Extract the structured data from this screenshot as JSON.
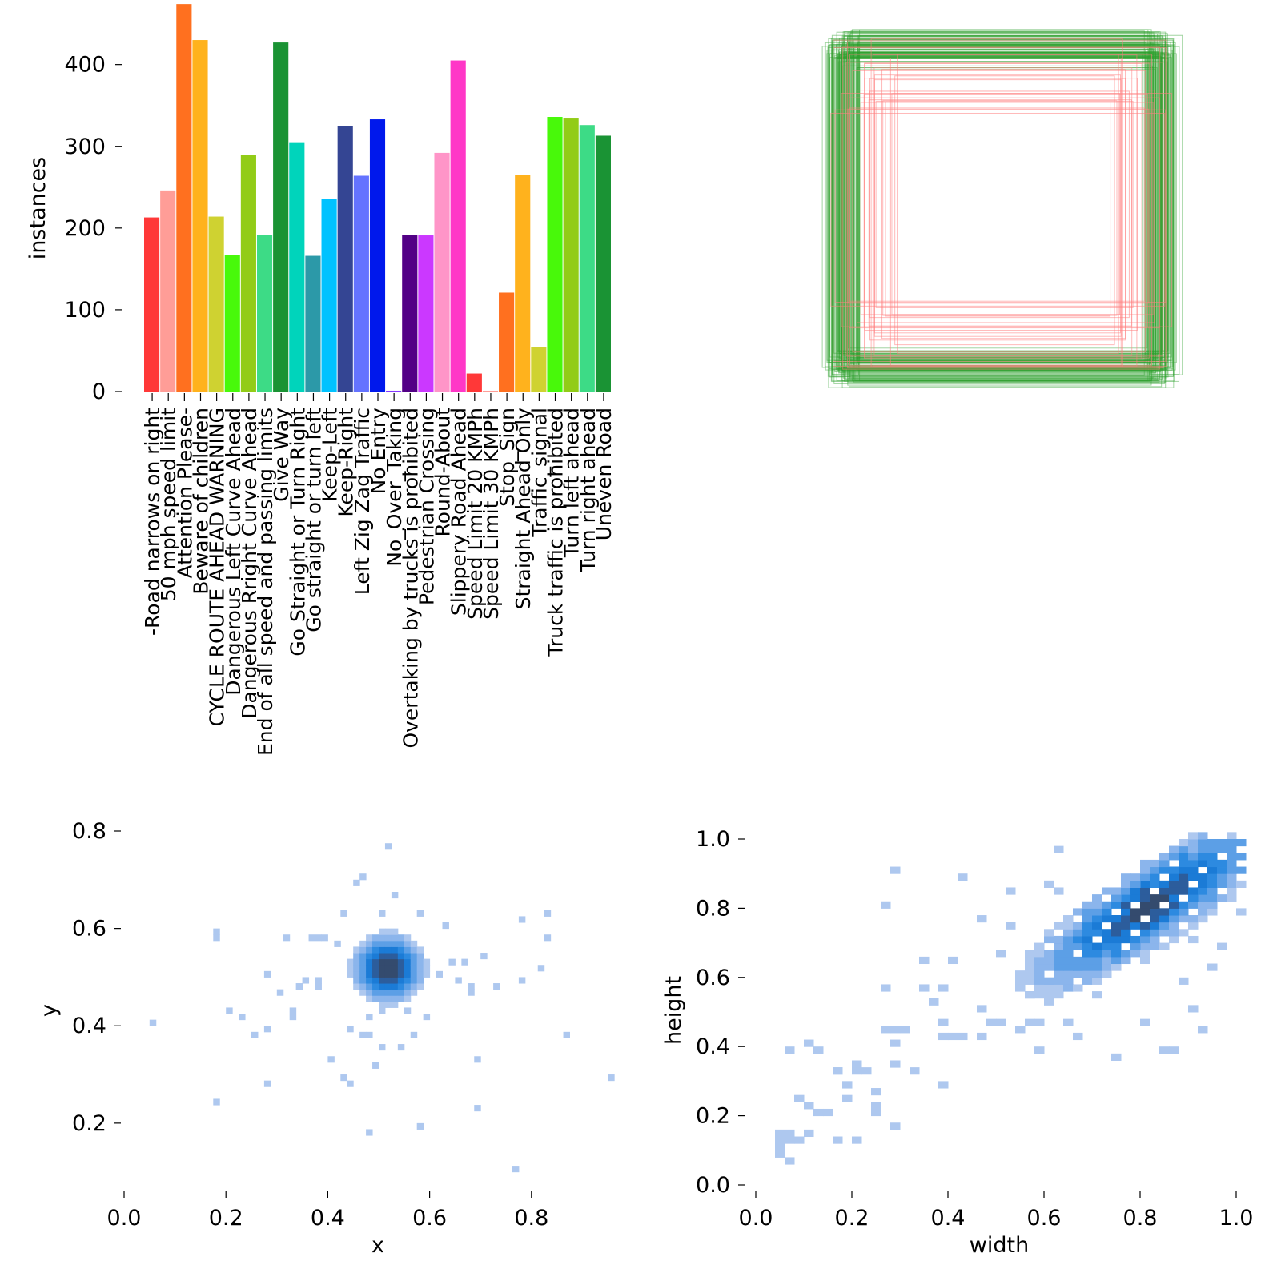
{
  "chart_data": [
    {
      "type": "bar",
      "title": "",
      "xlabel": "",
      "ylabel": "instances",
      "ylim": [
        0,
        480
      ],
      "yticks": [
        0,
        100,
        200,
        300,
        400
      ],
      "grid": false,
      "categories": [
        "-Road narrows on right",
        "50 mph speed limit",
        "Attention Please-",
        "Beware of children",
        "CYCLE ROUTE AHEAD WARNING",
        "Dangerous Left Curve Ahead",
        "Dangerous Rright Curve Ahead",
        "End of all speed and passing limits",
        "Give Way",
        "Go Straight or Turn Right",
        "Go straight or turn left",
        "Keep-Left",
        "Keep-Right",
        "Left Zig Zag Traffic",
        "No Entry",
        "No_Over_Taking",
        "Overtaking by trucks is prohibited",
        "Pedestrian Crossing",
        "Round-About",
        "Slippery Road Ahead",
        "Speed Limit 20 KMPh",
        "Speed Limit 30 KMPh",
        "Stop_Sign",
        "Straight Ahead Only",
        "Traffic_signal",
        "Truck traffic is prohibited",
        "Turn left ahead",
        "Turn right ahead",
        "Uneven Road"
      ],
      "values": [
        213,
        246,
        474,
        430,
        214,
        167,
        289,
        192,
        427,
        305,
        166,
        236,
        325,
        264,
        333,
        1,
        192,
        191,
        292,
        405,
        22,
        1,
        121,
        265,
        54,
        336,
        334,
        326,
        313
      ],
      "colors": [
        "#FF3838",
        "#FF9D97",
        "#FF701F",
        "#FFB21D",
        "#CFD231",
        "#48F90A",
        "#92CC17",
        "#3DDB86",
        "#1A9334",
        "#00D4BB",
        "#2C99A8",
        "#00C2FF",
        "#344593",
        "#6473FF",
        "#0018EC",
        "#8438FF",
        "#520085",
        "#CB38FF",
        "#FF95C8",
        "#FF37C7",
        "#FF3838",
        "#FF9D97",
        "#FF701F",
        "#FFB21D",
        "#CFD231",
        "#48F90A",
        "#92CC17",
        "#3DDB86",
        "#1A9334"
      ]
    },
    {
      "type": "boxes",
      "title": "",
      "colors": [
        "#2ca02c",
        "#ff7f7f"
      ],
      "grid": false
    },
    {
      "type": "heatmap",
      "title": "",
      "xlabel": "x",
      "ylabel": "y",
      "xlim": [
        0.0,
        1.0
      ],
      "ylim": [
        0.06,
        0.8
      ],
      "xticks": [
        "0.0",
        "0.2",
        "0.4",
        "0.6",
        "0.8"
      ],
      "yticks": [
        "0.2",
        "0.4",
        "0.6",
        "0.8"
      ],
      "bins": 0.0125,
      "core": {
        "center": [
          0.51,
          0.51
        ],
        "peak": 1
      },
      "points": [
        [
          0.05,
          0.4
        ],
        [
          0.17,
          0.24
        ],
        [
          0.18,
          0.57
        ],
        [
          0.18,
          0.59
        ],
        [
          0.2,
          0.43
        ],
        [
          0.22,
          0.41
        ],
        [
          0.25,
          0.38
        ],
        [
          0.28,
          0.27
        ],
        [
          0.28,
          0.39
        ],
        [
          0.28,
          0.5
        ],
        [
          0.3,
          0.46
        ],
        [
          0.31,
          0.57
        ],
        [
          0.32,
          0.41
        ],
        [
          0.32,
          0.43
        ],
        [
          0.34,
          0.47
        ],
        [
          0.35,
          0.49
        ],
        [
          0.36,
          0.57
        ],
        [
          0.37,
          0.48
        ],
        [
          0.38,
          0.49
        ],
        [
          0.38,
          0.58
        ],
        [
          0.39,
          0.57
        ],
        [
          0.4,
          0.32
        ],
        [
          0.41,
          0.56
        ],
        [
          0.42,
          0.29
        ],
        [
          0.43,
          0.63
        ],
        [
          0.44,
          0.27
        ],
        [
          0.44,
          0.39
        ],
        [
          0.45,
          0.69
        ],
        [
          0.46,
          0.37
        ],
        [
          0.46,
          0.7
        ],
        [
          0.47,
          0.37
        ],
        [
          0.48,
          0.18
        ],
        [
          0.48,
          0.41
        ],
        [
          0.49,
          0.31
        ],
        [
          0.5,
          0.35
        ],
        [
          0.5,
          0.43
        ],
        [
          0.5,
          0.63
        ],
        [
          0.51,
          0.76
        ],
        [
          0.52,
          0.66
        ],
        [
          0.53,
          0.45
        ],
        [
          0.54,
          0.35
        ],
        [
          0.55,
          0.43
        ],
        [
          0.56,
          0.38
        ],
        [
          0.57,
          0.62
        ],
        [
          0.57,
          0.49
        ],
        [
          0.58,
          0.19
        ],
        [
          0.59,
          0.41
        ],
        [
          0.61,
          0.5
        ],
        [
          0.62,
          0.6
        ],
        [
          0.64,
          0.52
        ],
        [
          0.65,
          0.49
        ],
        [
          0.66,
          0.53
        ],
        [
          0.67,
          0.46
        ],
        [
          0.68,
          0.47
        ],
        [
          0.69,
          0.23
        ],
        [
          0.69,
          0.33
        ],
        [
          0.7,
          0.54
        ],
        [
          0.72,
          0.48
        ],
        [
          0.76,
          0.1
        ],
        [
          0.78,
          0.49
        ],
        [
          0.78,
          0.61
        ],
        [
          0.81,
          0.51
        ],
        [
          0.82,
          0.58
        ],
        [
          0.83,
          0.62
        ],
        [
          0.86,
          0.38
        ],
        [
          0.95,
          0.29
        ]
      ]
    },
    {
      "type": "heatmap",
      "title": "",
      "xlabel": "width",
      "ylabel": "height",
      "xlim": [
        0.0,
        1.0
      ],
      "ylim": [
        0.0,
        1.0
      ],
      "xticks": [
        "0.0",
        "0.2",
        "0.4",
        "0.6",
        "0.8",
        "1.0"
      ],
      "yticks": [
        "0.0",
        "0.2",
        "0.4",
        "0.6",
        "0.8",
        "1.0"
      ],
      "bins": 0.02,
      "core": {
        "center": [
          0.81,
          0.8
        ],
        "direction": [
          0.7,
          0.7
        ],
        "peak": 1
      },
      "points": [
        [
          0.03,
          0.09
        ],
        [
          0.03,
          0.11
        ],
        [
          0.03,
          0.13
        ],
        [
          0.04,
          0.07
        ],
        [
          0.04,
          0.1
        ],
        [
          0.05,
          0.11
        ],
        [
          0.05,
          0.14
        ],
        [
          0.06,
          0.05
        ],
        [
          0.06,
          0.37
        ],
        [
          0.07,
          0.12
        ],
        [
          0.08,
          0.24
        ],
        [
          0.09,
          0.13
        ],
        [
          0.09,
          0.21
        ],
        [
          0.1,
          0.4
        ],
        [
          0.11,
          0.19
        ],
        [
          0.12,
          0.37
        ],
        [
          0.13,
          0.2
        ],
        [
          0.15,
          0.32
        ],
        [
          0.15,
          0.12
        ],
        [
          0.16,
          0.31
        ],
        [
          0.17,
          0.28
        ],
        [
          0.18,
          0.27
        ],
        [
          0.18,
          0.24
        ],
        [
          0.19,
          0.12
        ],
        [
          0.2,
          0.34
        ],
        [
          0.2,
          0.31
        ],
        [
          0.22,
          0.31
        ],
        [
          0.23,
          0.26
        ],
        [
          0.23,
          0.2
        ],
        [
          0.24,
          0.22
        ],
        [
          0.25,
          0.55
        ],
        [
          0.25,
          0.79
        ],
        [
          0.26,
          0.43
        ],
        [
          0.27,
          0.33
        ],
        [
          0.27,
          0.4
        ],
        [
          0.28,
          0.16
        ],
        [
          0.29,
          0.44
        ],
        [
          0.29,
          0.9
        ],
        [
          0.3,
          0.43
        ],
        [
          0.32,
          0.31
        ],
        [
          0.33,
          0.57
        ],
        [
          0.34,
          0.64
        ],
        [
          0.36,
          0.52
        ],
        [
          0.37,
          0.55
        ],
        [
          0.37,
          0.47
        ],
        [
          0.38,
          0.27
        ],
        [
          0.38,
          0.42
        ],
        [
          0.4,
          0.42
        ],
        [
          0.4,
          0.63
        ],
        [
          0.41,
          0.88
        ],
        [
          0.42,
          0.42
        ],
        [
          0.45,
          0.42
        ],
        [
          0.46,
          0.75
        ],
        [
          0.47,
          0.5
        ],
        [
          0.48,
          0.45
        ],
        [
          0.49,
          0.47
        ],
        [
          0.5,
          0.66
        ],
        [
          0.51,
          0.73
        ],
        [
          0.52,
          0.84
        ],
        [
          0.53,
          0.44
        ],
        [
          0.55,
          0.47
        ],
        [
          0.57,
          0.6
        ],
        [
          0.58,
          0.38
        ],
        [
          0.59,
          0.45
        ],
        [
          0.6,
          0.86
        ],
        [
          0.61,
          0.95
        ],
        [
          0.62,
          0.84
        ],
        [
          0.63,
          0.47
        ],
        [
          0.65,
          0.42
        ],
        [
          0.7,
          0.53
        ],
        [
          0.74,
          0.35
        ],
        [
          0.8,
          0.47
        ],
        [
          0.84,
          0.37
        ],
        [
          0.86,
          0.38
        ],
        [
          0.88,
          0.59
        ],
        [
          0.89,
          0.7
        ],
        [
          0.9,
          0.49
        ],
        [
          0.91,
          0.44
        ],
        [
          0.93,
          0.62
        ],
        [
          0.95,
          0.68
        ],
        [
          0.96,
          0.88
        ],
        [
          0.97,
          0.82
        ],
        [
          0.98,
          0.99
        ],
        [
          0.99,
          0.77
        ]
      ]
    }
  ]
}
